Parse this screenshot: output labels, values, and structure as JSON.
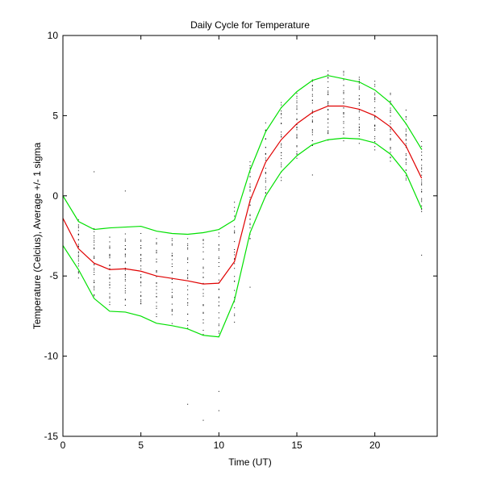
{
  "chart_data": {
    "type": "line",
    "title": "Daily Cycle for Temperature",
    "xlabel": "Time (UT)",
    "ylabel": "Temperature (Celcius), Average +/- 1 sigma",
    "xlim": [
      0,
      24
    ],
    "ylim": [
      -15,
      10
    ],
    "xticks": [
      0,
      5,
      10,
      15,
      20
    ],
    "yticks": [
      -15,
      -10,
      -5,
      0,
      5,
      10
    ],
    "grid": false,
    "x": [
      0,
      1,
      2,
      3,
      4,
      5,
      6,
      7,
      8,
      9,
      10,
      11,
      12,
      13,
      14,
      15,
      16,
      17,
      18,
      19,
      20,
      21,
      22,
      23
    ],
    "series": [
      {
        "name": "Average + 1 sigma",
        "color": "#00e000",
        "values": [
          0.0,
          -1.6,
          -2.1,
          -2.0,
          -1.95,
          -1.9,
          -2.2,
          -2.35,
          -2.4,
          -2.3,
          -2.1,
          -1.5,
          1.6,
          4.0,
          5.5,
          6.5,
          7.2,
          7.5,
          7.3,
          7.1,
          6.6,
          5.8,
          4.5,
          2.9
        ]
      },
      {
        "name": "Average",
        "color": "#e00000",
        "values": [
          -1.4,
          -3.3,
          -4.2,
          -4.6,
          -4.55,
          -4.7,
          -5.0,
          -5.15,
          -5.3,
          -5.5,
          -5.45,
          -4.1,
          -0.3,
          2.1,
          3.5,
          4.5,
          5.2,
          5.6,
          5.6,
          5.4,
          5.0,
          4.3,
          3.1,
          1.1
        ]
      },
      {
        "name": "Average - 1 sigma",
        "color": "#00e000",
        "values": [
          -3.1,
          -4.6,
          -6.4,
          -7.2,
          -7.25,
          -7.5,
          -7.95,
          -8.1,
          -8.3,
          -8.7,
          -8.8,
          -6.5,
          -2.3,
          0.0,
          1.5,
          2.5,
          3.2,
          3.5,
          3.6,
          3.55,
          3.3,
          2.6,
          1.4,
          -0.8
        ]
      }
    ],
    "scatter": {
      "name": "Observations",
      "color": "#000000",
      "spread": [
        1.0,
        1.3,
        1.6,
        1.6,
        1.6,
        1.7,
        1.9,
        2.0,
        2.1,
        2.3,
        2.4,
        2.7,
        1.8,
        1.8,
        1.8,
        1.6,
        1.6,
        1.6,
        1.6,
        1.6,
        1.6,
        1.6,
        1.6,
        1.7
      ],
      "outliers": [
        {
          "x": 8,
          "y": -13.0
        },
        {
          "x": 9,
          "y": -14.0
        },
        {
          "x": 10,
          "y": -13.4
        },
        {
          "x": 10,
          "y": -12.2
        },
        {
          "x": 12,
          "y": -5.7
        },
        {
          "x": 23,
          "y": -3.7
        },
        {
          "x": 2,
          "y": 1.5
        },
        {
          "x": 4,
          "y": 0.3
        },
        {
          "x": 16,
          "y": 1.3
        }
      ]
    }
  }
}
